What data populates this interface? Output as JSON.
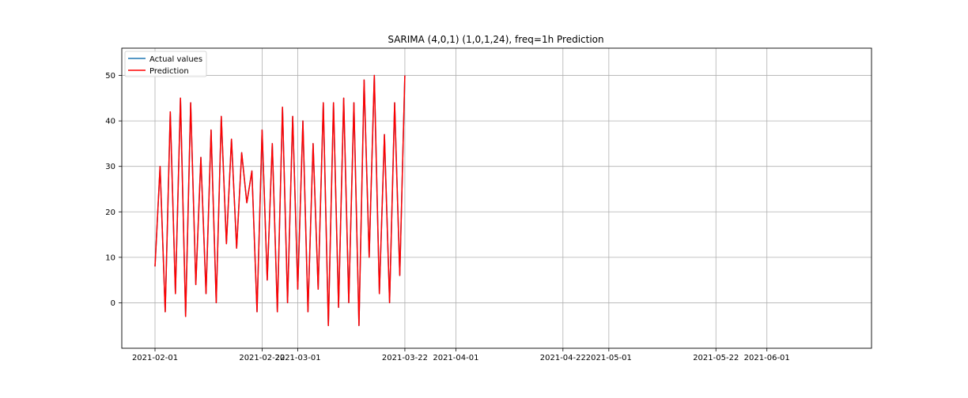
{
  "chart_data": {
    "type": "line",
    "title": "SARIMA (4,0,1) (1,0,1,24), freq=1h Prediction",
    "xlabel": "",
    "ylabel": "",
    "x_range": [
      "2021-02-01",
      "2021-06-15"
    ],
    "ylim": [
      -10,
      56
    ],
    "grid": true,
    "legend_position": "top-left",
    "x_ticks": [
      "2021-02-01",
      "2021-02-22",
      "2021-03-01",
      "2021-03-22",
      "2021-04-01",
      "2021-04-22",
      "2021-05-01",
      "2021-05-22",
      "2021-06-01"
    ],
    "y_ticks": [
      0,
      10,
      20,
      30,
      40,
      50
    ],
    "series": [
      {
        "name": "Actual values",
        "color": "#1f77b4",
        "points": [
          [
            "2021-02-01",
            8
          ],
          [
            "2021-02-02",
            30
          ],
          [
            "2021-02-03",
            -2
          ],
          [
            "2021-02-04",
            42
          ],
          [
            "2021-02-05",
            2
          ],
          [
            "2021-02-06",
            45
          ],
          [
            "2021-02-07",
            -3
          ],
          [
            "2021-02-08",
            44
          ],
          [
            "2021-02-09",
            4
          ],
          [
            "2021-02-10",
            32
          ],
          [
            "2021-02-11",
            2
          ],
          [
            "2021-02-12",
            38
          ],
          [
            "2021-02-13",
            0
          ],
          [
            "2021-02-14",
            41
          ],
          [
            "2021-02-15",
            13
          ],
          [
            "2021-02-16",
            36
          ],
          [
            "2021-02-17",
            12
          ],
          [
            "2021-02-18",
            33
          ],
          [
            "2021-02-19",
            22
          ],
          [
            "2021-02-20",
            29
          ],
          [
            "2021-02-21",
            -2
          ],
          [
            "2021-02-22",
            38
          ],
          [
            "2021-02-23",
            5
          ],
          [
            "2021-02-24",
            35
          ],
          [
            "2021-02-25",
            -2
          ],
          [
            "2021-02-26",
            43
          ],
          [
            "2021-02-27",
            0
          ],
          [
            "2021-02-28",
            41
          ],
          [
            "2021-03-01",
            3
          ],
          [
            "2021-03-02",
            40
          ],
          [
            "2021-03-03",
            -2
          ],
          [
            "2021-03-04",
            35
          ],
          [
            "2021-03-05",
            3
          ],
          [
            "2021-03-06",
            44
          ],
          [
            "2021-03-07",
            -5
          ],
          [
            "2021-03-08",
            44
          ],
          [
            "2021-03-09",
            -1
          ],
          [
            "2021-03-10",
            45
          ],
          [
            "2021-03-11",
            0
          ],
          [
            "2021-03-12",
            44
          ],
          [
            "2021-03-13",
            -5
          ],
          [
            "2021-03-14",
            49
          ],
          [
            "2021-03-15",
            10
          ],
          [
            "2021-03-16",
            50
          ],
          [
            "2021-03-17",
            2
          ],
          [
            "2021-03-18",
            37
          ],
          [
            "2021-03-19",
            0
          ],
          [
            "2021-03-20",
            44
          ],
          [
            "2021-03-21",
            6
          ],
          [
            "2021-03-22",
            50
          ]
        ]
      },
      {
        "name": "Prediction",
        "color": "#ff0000",
        "points": [
          [
            "2021-02-01",
            8
          ],
          [
            "2021-02-02",
            30
          ],
          [
            "2021-02-03",
            -2
          ],
          [
            "2021-02-04",
            42
          ],
          [
            "2021-02-05",
            2
          ],
          [
            "2021-02-06",
            45
          ],
          [
            "2021-02-07",
            -3
          ],
          [
            "2021-02-08",
            44
          ],
          [
            "2021-02-09",
            4
          ],
          [
            "2021-02-10",
            32
          ],
          [
            "2021-02-11",
            2
          ],
          [
            "2021-02-12",
            38
          ],
          [
            "2021-02-13",
            0
          ],
          [
            "2021-02-14",
            41
          ],
          [
            "2021-02-15",
            13
          ],
          [
            "2021-02-16",
            36
          ],
          [
            "2021-02-17",
            12
          ],
          [
            "2021-02-18",
            33
          ],
          [
            "2021-02-19",
            22
          ],
          [
            "2021-02-20",
            29
          ],
          [
            "2021-02-21",
            -2
          ],
          [
            "2021-02-22",
            38
          ],
          [
            "2021-02-23",
            5
          ],
          [
            "2021-02-24",
            35
          ],
          [
            "2021-02-25",
            -2
          ],
          [
            "2021-02-26",
            43
          ],
          [
            "2021-02-27",
            0
          ],
          [
            "2021-02-28",
            41
          ],
          [
            "2021-03-01",
            3
          ],
          [
            "2021-03-02",
            40
          ],
          [
            "2021-03-03",
            -2
          ],
          [
            "2021-03-04",
            35
          ],
          [
            "2021-03-05",
            3
          ],
          [
            "2021-03-06",
            44
          ],
          [
            "2021-03-07",
            -5
          ],
          [
            "2021-03-08",
            44
          ],
          [
            "2021-03-09",
            -1
          ],
          [
            "2021-03-10",
            45
          ],
          [
            "2021-03-11",
            0
          ],
          [
            "2021-03-12",
            44
          ],
          [
            "2021-03-13",
            -5
          ],
          [
            "2021-03-14",
            49
          ],
          [
            "2021-03-15",
            10
          ],
          [
            "2021-03-16",
            50
          ],
          [
            "2021-03-17",
            2
          ],
          [
            "2021-03-18",
            37
          ],
          [
            "2021-03-19",
            0
          ],
          [
            "2021-03-20",
            44
          ],
          [
            "2021-03-21",
            6
          ],
          [
            "2021-03-22",
            50
          ]
        ]
      }
    ]
  }
}
